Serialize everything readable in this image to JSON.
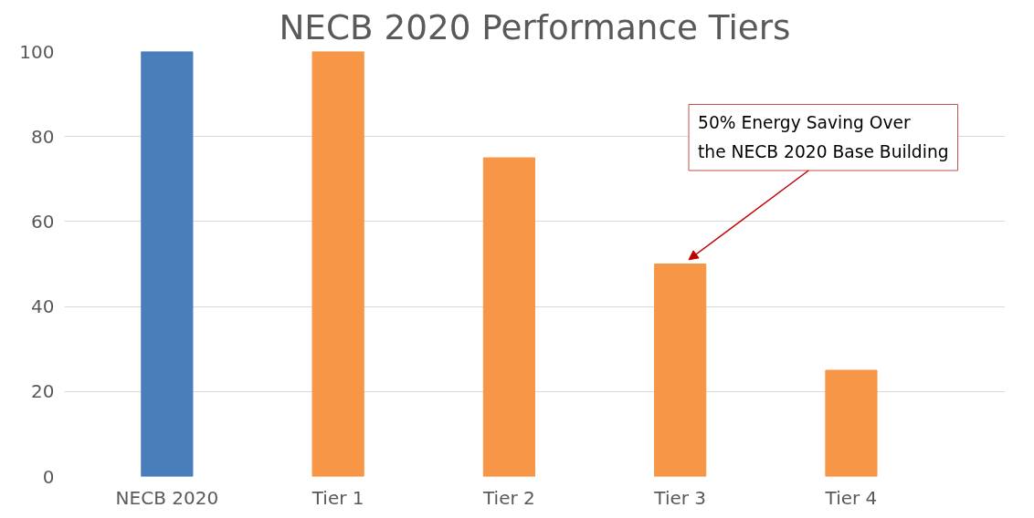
{
  "chart_data": {
    "type": "bar",
    "title": "NECB 2020 Performance Tiers",
    "categories": [
      "NECB 2020",
      "Tier 1",
      "Tier 2",
      "Tier 3",
      "Tier 4"
    ],
    "values": [
      100,
      100,
      75,
      50,
      25
    ],
    "colors": [
      "#4a7ebb",
      "#f79646",
      "#f79646",
      "#f79646",
      "#f79646"
    ],
    "ylim": [
      0,
      100
    ],
    "yticks": [
      0,
      20,
      40,
      60,
      80,
      100
    ],
    "grid": "y",
    "annotations": [
      "50% Energy Saving Over\nthe NECB 2020 Base Building"
    ]
  }
}
